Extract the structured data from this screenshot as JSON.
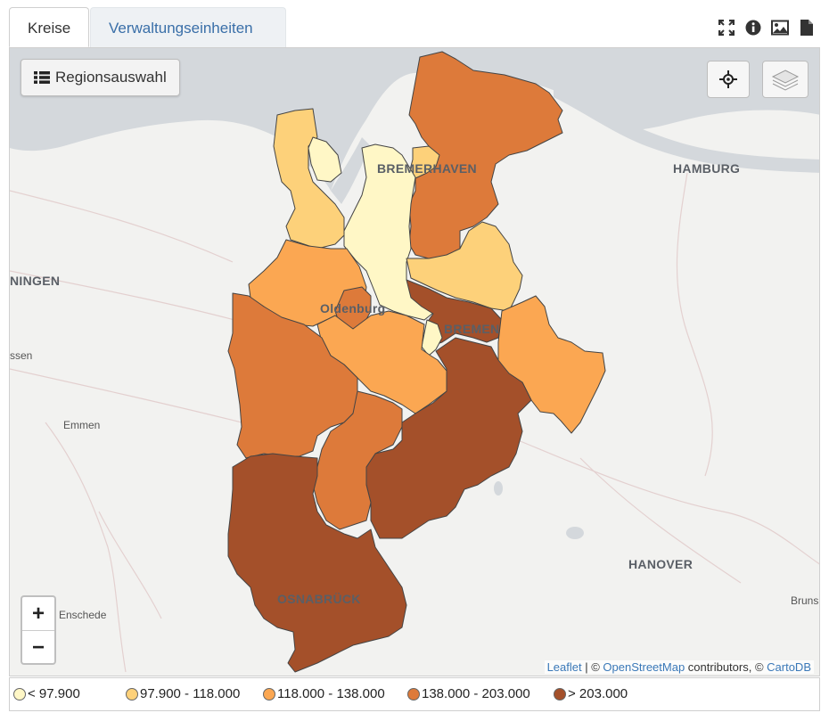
{
  "tabs": [
    {
      "label": "Kreise",
      "active": true
    },
    {
      "label": "Verwaltungseinheiten",
      "active": false
    }
  ],
  "toolbar_icons": [
    "fullscreen-icon",
    "info-icon",
    "image-icon",
    "document-icon"
  ],
  "region_button": {
    "label": "Regionsauswahl",
    "icon": "list-icon"
  },
  "map_controls": {
    "locate": "crosshair-icon",
    "layers": "layers-icon"
  },
  "zoom": {
    "in_label": "+",
    "out_label": "−"
  },
  "cities": {
    "bremerhaven": "BREMERHAVEN",
    "hamburg": "HAMBURG",
    "ningen": "NINGEN",
    "oldenburg": "Oldenburg",
    "bremen": "BREMEN",
    "ssen": "ssen",
    "emmen": "Emmen",
    "hanover": "HANOVER",
    "osnabruck": "OSNABRÜCK",
    "enschede": "Enschede",
    "bruns": "Bruns"
  },
  "attribution": {
    "leaflet": "Leaflet",
    "sep": " | © ",
    "osm": "OpenStreetMap",
    "contrib": " contributors, © ",
    "carto": "CartoDB"
  },
  "legend": [
    {
      "label": "< 97.900",
      "color": "#fff7c6"
    },
    {
      "label": "97.900 - 118.000",
      "color": "#fdd17a"
    },
    {
      "label": "118.000 - 138.000",
      "color": "#fba752"
    },
    {
      "label": "138.000 - 203.000",
      "color": "#dd7a3a"
    },
    {
      "label": "> 203.000",
      "color": "#a4502a"
    }
  ],
  "colors": {
    "water": "#d4d8dc",
    "land": "#f2f2f0",
    "border": "#444444"
  }
}
